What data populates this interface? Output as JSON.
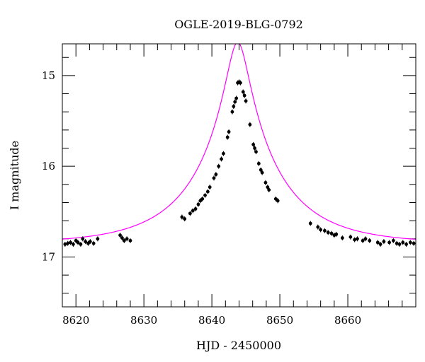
{
  "chart_data": {
    "type": "scatter",
    "title": "OGLE-2019-BLG-0792",
    "xlabel": "HJD - 2450000",
    "ylabel": "I magnitude",
    "xlim": [
      8618,
      8670
    ],
    "ylim": [
      17.55,
      14.65
    ],
    "y_inverted": true,
    "x_major_ticks": [
      8620,
      8630,
      8640,
      8650,
      8660
    ],
    "x_tick_labels": [
      "8620",
      "8630",
      "8640",
      "8650",
      "8660"
    ],
    "x_minor_step": 2,
    "y_major_ticks": [
      15,
      16,
      17
    ],
    "y_tick_labels": [
      "15",
      "16",
      "17"
    ],
    "y_minor_step": 0.2,
    "grid": false,
    "legend": "none",
    "colors": {
      "points": "#000000",
      "model": "#ff00ff",
      "axes": "#000000"
    },
    "model": {
      "name": "",
      "type": "point-lens microlensing fit",
      "t0": 8643.8,
      "u0": 0.13,
      "tE": 12.0,
      "baseline_mag": 16.855
    },
    "series": [
      {
        "name": "",
        "points": [
          [
            8618.4,
            16.86
          ],
          [
            8618.8,
            16.85
          ],
          [
            8619.2,
            16.84
          ],
          [
            8619.6,
            16.86
          ],
          [
            8620.0,
            16.82
          ],
          [
            8620.3,
            16.84
          ],
          [
            8620.7,
            16.86
          ],
          [
            8621.0,
            16.8
          ],
          [
            8621.4,
            16.83
          ],
          [
            8621.8,
            16.85
          ],
          [
            8622.1,
            16.83
          ],
          [
            8622.6,
            16.85
          ],
          [
            8623.2,
            16.8
          ],
          [
            8626.5,
            16.76
          ],
          [
            8626.8,
            16.79
          ],
          [
            8627.1,
            16.82
          ],
          [
            8627.5,
            16.8
          ],
          [
            8628.0,
            16.82
          ],
          [
            8635.6,
            16.56
          ],
          [
            8636.0,
            16.58
          ],
          [
            8636.8,
            16.52
          ],
          [
            8637.2,
            16.49
          ],
          [
            8637.6,
            16.47
          ],
          [
            8638.0,
            16.42
          ],
          [
            8638.3,
            16.38
          ],
          [
            8638.6,
            16.36
          ],
          [
            8639.0,
            16.32
          ],
          [
            8639.4,
            16.28
          ],
          [
            8639.7,
            16.23
          ],
          [
            8640.3,
            16.13
          ],
          [
            8640.6,
            16.09
          ],
          [
            8641.0,
            16.0
          ],
          [
            8641.4,
            15.92
          ],
          [
            8641.7,
            15.86
          ],
          [
            8642.3,
            15.68
          ],
          [
            8642.5,
            15.62
          ],
          [
            8643.0,
            15.4
          ],
          [
            8643.2,
            15.34
          ],
          [
            8643.4,
            15.29
          ],
          [
            8643.6,
            15.25
          ],
          [
            8643.8,
            15.08
          ],
          [
            8644.0,
            15.07
          ],
          [
            8644.2,
            15.08
          ],
          [
            8644.6,
            15.18
          ],
          [
            8644.8,
            15.22
          ],
          [
            8645.0,
            15.28
          ],
          [
            8645.6,
            15.54
          ],
          [
            8646.1,
            15.76
          ],
          [
            8646.3,
            15.8
          ],
          [
            8646.5,
            15.84
          ],
          [
            8646.9,
            15.97
          ],
          [
            8647.2,
            16.04
          ],
          [
            8647.4,
            16.07
          ],
          [
            8647.9,
            16.18
          ],
          [
            8648.2,
            16.23
          ],
          [
            8648.4,
            16.26
          ],
          [
            8649.4,
            16.36
          ],
          [
            8649.7,
            16.38
          ],
          [
            8654.5,
            16.63
          ],
          [
            8655.6,
            16.67
          ],
          [
            8656.0,
            16.7
          ],
          [
            8656.6,
            16.71
          ],
          [
            8657.1,
            16.73
          ],
          [
            8657.6,
            16.74
          ],
          [
            8658.0,
            16.76
          ],
          [
            8658.3,
            16.75
          ],
          [
            8659.2,
            16.79
          ],
          [
            8660.4,
            16.78
          ],
          [
            8661.0,
            16.81
          ],
          [
            8661.4,
            16.8
          ],
          [
            8662.2,
            16.82
          ],
          [
            8662.6,
            16.8
          ],
          [
            8663.2,
            16.82
          ],
          [
            8664.4,
            16.84
          ],
          [
            8664.8,
            16.86
          ],
          [
            8665.3,
            16.83
          ],
          [
            8666.1,
            16.84
          ],
          [
            8666.7,
            16.82
          ],
          [
            8667.2,
            16.85
          ],
          [
            8667.6,
            16.86
          ],
          [
            8668.1,
            16.84
          ],
          [
            8668.6,
            16.86
          ],
          [
            8669.2,
            16.84
          ],
          [
            8669.7,
            16.85
          ]
        ]
      }
    ]
  }
}
